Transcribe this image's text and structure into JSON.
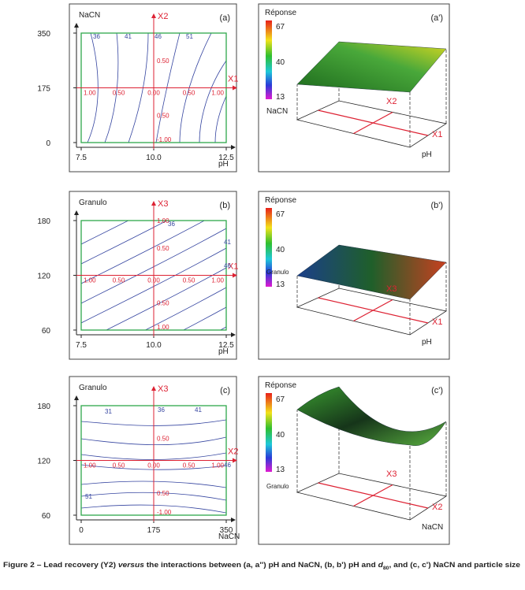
{
  "panels": [
    {
      "label": "(a)",
      "y_label": "NaCN",
      "x_label": "pH",
      "yticks": [
        "350",
        "175",
        "0"
      ],
      "xticks": [
        "7.5",
        "10.0",
        "12.5"
      ],
      "h_axis": "X1",
      "v_axis": "X2",
      "contour_labels": [
        "36",
        "41",
        "46",
        "51"
      ],
      "h_coded": [
        "1.00",
        "0.50",
        "0.00",
        "0.50",
        "1.00"
      ],
      "v_coded": [
        "0.50",
        "0.50",
        "-1.00"
      ]
    },
    {
      "label": "(b)",
      "y_label": "Granulo",
      "x_label": "pH",
      "yticks": [
        "180",
        "120",
        "60"
      ],
      "xticks": [
        "7.5",
        "10.0",
        "12.5"
      ],
      "h_axis": "X1",
      "v_axis": "X3",
      "contour_labels": [
        "36",
        "41",
        "46"
      ],
      "h_coded": [
        "1.00",
        "0.50",
        "0.00",
        "0.50",
        "1.00"
      ],
      "v_coded": [
        "1.00",
        "0.50",
        "0.50",
        "1.00"
      ]
    },
    {
      "label": "(c)",
      "y_label": "Granulo",
      "x_label": "NaCN",
      "yticks": [
        "180",
        "120",
        "60"
      ],
      "xticks": [
        "0",
        "175",
        "350"
      ],
      "h_axis": "X2",
      "v_axis": "X3",
      "contour_labels": [
        "31",
        "36",
        "41",
        "46",
        "51"
      ],
      "h_coded": [
        "1.00",
        "0.50",
        "0.00",
        "0.50",
        "1.00"
      ],
      "v_coded": [
        "0.50",
        "0.50",
        "-1.00"
      ]
    }
  ],
  "surfaces": [
    {
      "label": "(a')",
      "legend_title": "Réponse",
      "scale": [
        "67",
        "40",
        "13"
      ],
      "axis_a": "X2",
      "axis_b": "X1",
      "dim_a": "NaCN",
      "dim_b": "pH"
    },
    {
      "label": "(b')",
      "legend_title": "Réponse",
      "scale": [
        "67",
        "40",
        "13"
      ],
      "axis_a": "X3",
      "axis_b": "X1",
      "dim_a": "Granulo",
      "dim_b": "pH"
    },
    {
      "label": "(c')",
      "legend_title": "Réponse",
      "scale": [
        "67",
        "40",
        "13"
      ],
      "axis_a": "X3",
      "axis_b": "X2",
      "dim_a": "Granulo",
      "dim_b": "NaCN"
    }
  ],
  "caption": [
    "Figure 2 – Lead recovery (Y2) ",
    "versus",
    " the interactions between (a, a'') pH and NaCN, (b, b') pH and ",
    "d",
    "80",
    ", and (c, c') NaCN and particle size"
  ]
}
